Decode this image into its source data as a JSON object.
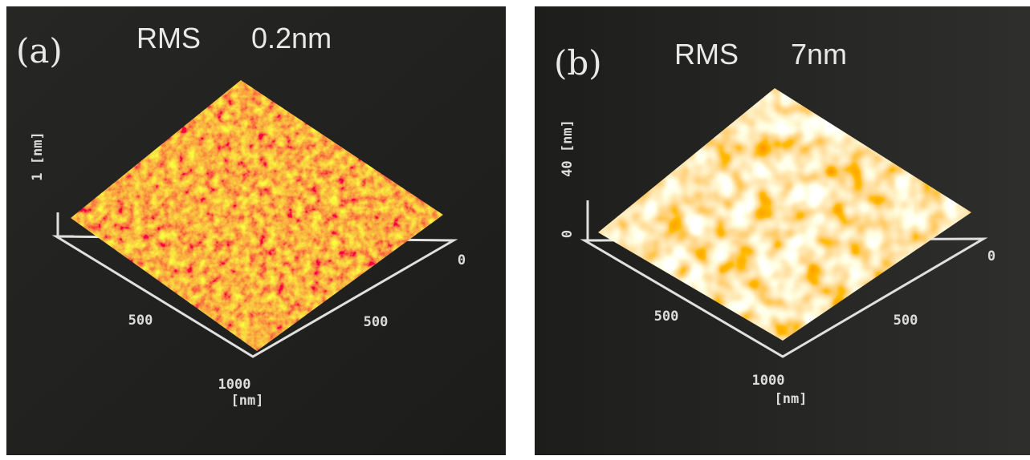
{
  "panels": [
    {
      "label": "(a)",
      "title": "RMS",
      "value": "0.2nm",
      "z_axis": {
        "max": "1 [nm]"
      },
      "x_axis": {
        "ticks": [
          "500",
          "1000"
        ],
        "unit": "[nm]"
      },
      "y_axis": {
        "ticks": [
          "0",
          "500"
        ]
      }
    },
    {
      "label": "(b)",
      "title": "RMS",
      "value": "7nm",
      "z_axis": {
        "max": "40 [nm]",
        "min": "0"
      },
      "x_axis": {
        "ticks": [
          "500",
          "1000"
        ],
        "unit": "[nm]"
      },
      "y_axis": {
        "ticks": [
          "0",
          "500"
        ]
      }
    }
  ]
}
